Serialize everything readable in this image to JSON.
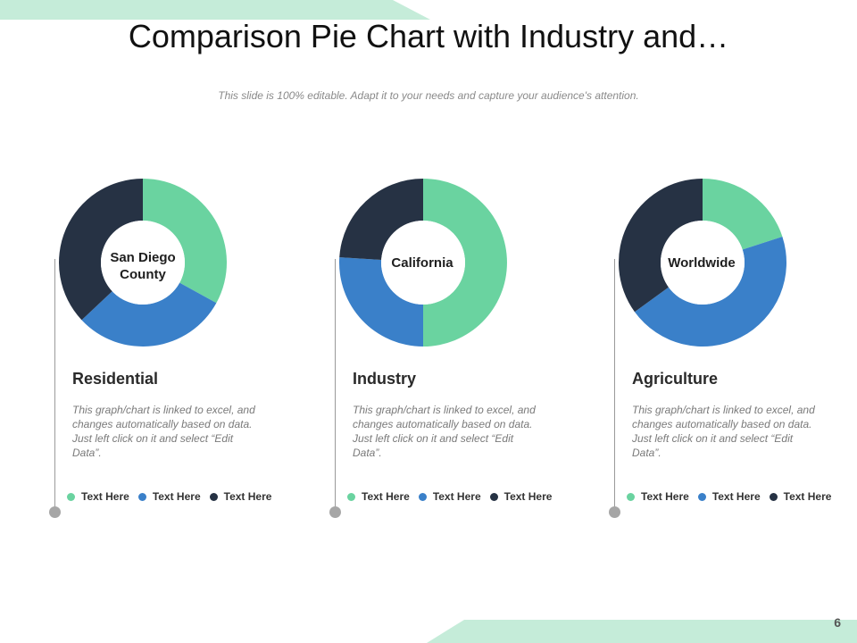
{
  "title": "Comparison Pie Chart with Industry and…",
  "subtitle": "This slide is 100% editable. Adapt it to your needs and capture your audience's attention.",
  "page_number": "6",
  "colors": {
    "green": "#6ad3a0",
    "blue": "#3a80c9",
    "navy": "#263244",
    "accent": "#c5ecd9"
  },
  "panels": [
    {
      "center_line1": "San Diego",
      "center_line2": "County",
      "heading": "Residential",
      "description": "This graph/chart is linked to excel, and changes automatically based on data. Just left click on it and select “Edit Data”.",
      "legend": [
        "Text Here",
        "Text Here",
        "Text Here"
      ]
    },
    {
      "center_line1": "California",
      "center_line2": "",
      "heading": "Industry",
      "description": "This graph/chart is linked to excel, and changes automatically based on data. Just left click on it and select “Edit Data”.",
      "legend": [
        "Text Here",
        "Text Here",
        "Text Here"
      ]
    },
    {
      "center_line1": "Worldwide",
      "center_line2": "",
      "heading": "Agriculture",
      "description": "This graph/chart is linked to excel, and changes automatically based on data. Just left click on it and select “Edit Data”.",
      "legend": [
        "Text Here",
        "Text Here",
        "Text Here"
      ]
    }
  ],
  "chart_data": [
    {
      "type": "pie",
      "donut": true,
      "categories": [
        "Text Here",
        "Text Here",
        "Text Here"
      ],
      "values": [
        33,
        30,
        37
      ],
      "colors": [
        "#6ad3a0",
        "#3a80c9",
        "#263244"
      ]
    },
    {
      "type": "pie",
      "donut": true,
      "categories": [
        "Text Here",
        "Text Here",
        "Text Here"
      ],
      "values": [
        50,
        26,
        24
      ],
      "colors": [
        "#6ad3a0",
        "#3a80c9",
        "#263244"
      ]
    },
    {
      "type": "pie",
      "donut": true,
      "categories": [
        "Text Here",
        "Text Here",
        "Text Here"
      ],
      "values": [
        20,
        45,
        35
      ],
      "colors": [
        "#6ad3a0",
        "#3a80c9",
        "#263244"
      ]
    }
  ]
}
